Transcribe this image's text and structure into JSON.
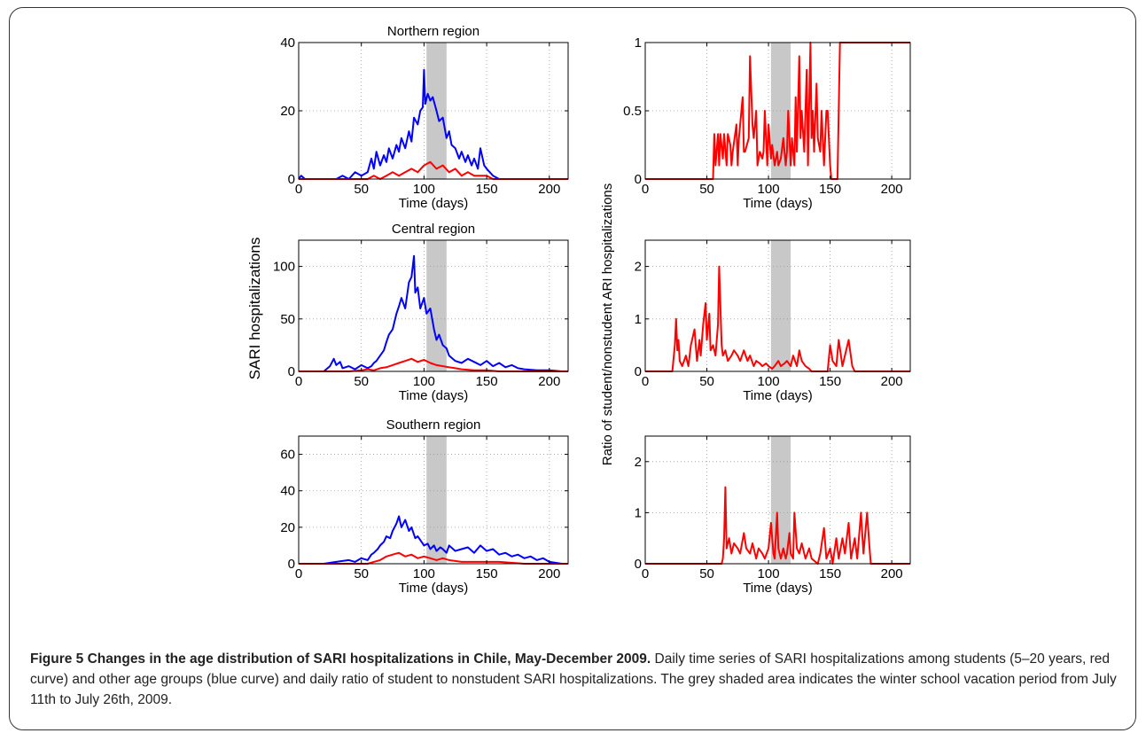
{
  "figure": {
    "caption_title": "Figure 5 Changes in the age distribution of SARI hospitalizations in Chile, May-December 2009.",
    "caption_text": "Daily time series of SARI hospitalizations among students (5–20 years, red curve) and other age groups (blue curve) and daily ratio of student to nonstudent SARI hospitalizations. The grey shaded area indicates the winter school vacation period from July 11th to July 26th, 2009.",
    "left_ylabel": "SARI hospitalizations",
    "right_ylabel": "Ratio of student/nonstudent ARI hospitalizations",
    "colors": {
      "students": "#ff0000",
      "others": "#0000ff",
      "shade": "#c8c8c8"
    }
  },
  "chart_data": [
    {
      "type": "line",
      "title": "Northern region",
      "xlabel": "Time (days)",
      "ylabel": "",
      "xlim": [
        0,
        215
      ],
      "ylim": [
        0,
        40
      ],
      "xticks": [
        0,
        50,
        100,
        150,
        200
      ],
      "yticks": [
        0,
        20,
        40
      ],
      "shaded_x": [
        102,
        118
      ],
      "grid": true,
      "series": [
        {
          "color": "#0000ff",
          "x": [
            0,
            2,
            5,
            10,
            20,
            30,
            35,
            40,
            45,
            50,
            55,
            58,
            60,
            62,
            65,
            68,
            70,
            72,
            75,
            78,
            80,
            82,
            85,
            88,
            90,
            92,
            95,
            97,
            99,
            100,
            101,
            103,
            105,
            107,
            110,
            112,
            115,
            118,
            120,
            122,
            125,
            128,
            130,
            133,
            135,
            138,
            140,
            143,
            145,
            148,
            150,
            155,
            160,
            180,
            200,
            215
          ],
          "y": [
            0,
            1,
            0,
            0,
            0,
            0,
            1,
            0,
            2,
            1,
            2,
            6,
            3,
            8,
            4,
            7,
            5,
            9,
            6,
            10,
            8,
            12,
            9,
            14,
            11,
            18,
            16,
            20,
            21,
            32,
            22,
            25,
            23,
            24,
            20,
            17,
            18,
            12,
            14,
            10,
            9,
            6,
            8,
            5,
            7,
            4,
            6,
            3,
            9,
            4,
            3,
            1,
            0,
            0,
            0,
            0
          ]
        },
        {
          "color": "#ff0000",
          "x": [
            0,
            40,
            50,
            55,
            60,
            65,
            70,
            75,
            80,
            85,
            90,
            95,
            100,
            105,
            110,
            115,
            120,
            125,
            130,
            135,
            140,
            145,
            150,
            155,
            160,
            215
          ],
          "y": [
            0,
            0,
            0,
            0,
            1,
            0,
            1,
            2,
            1,
            2,
            3,
            2,
            4,
            5,
            3,
            4,
            2,
            3,
            1,
            2,
            1,
            1,
            1,
            0,
            0,
            0
          ]
        }
      ]
    },
    {
      "type": "line",
      "title": "",
      "xlabel": "Time (days)",
      "ylabel": "",
      "xlim": [
        0,
        215
      ],
      "ylim": [
        0,
        1
      ],
      "xticks": [
        0,
        50,
        100,
        150,
        200
      ],
      "yticks": [
        0,
        0.5,
        1
      ],
      "shaded_x": [
        102,
        118
      ],
      "grid": true,
      "series": [
        {
          "color": "#ff0000",
          "x": [
            0,
            50,
            55,
            56,
            57,
            59,
            60,
            61,
            63,
            64,
            66,
            67,
            69,
            70,
            71,
            74,
            75,
            76,
            79,
            80,
            81,
            84,
            85,
            87,
            88,
            90,
            91,
            93,
            95,
            96,
            97,
            99,
            100,
            102,
            103,
            105,
            107,
            108,
            110,
            112,
            114,
            115,
            116,
            118,
            119,
            121,
            122,
            123,
            125,
            126,
            127,
            129,
            130,
            131,
            132,
            134,
            135,
            136,
            137,
            139,
            140,
            142,
            143,
            145,
            147,
            148,
            150,
            151,
            155,
            156,
            157,
            158,
            160,
            215
          ],
          "y": [
            0,
            0,
            0,
            0.33,
            0.1,
            0.33,
            0.1,
            0.33,
            0.15,
            0.33,
            0.1,
            0.33,
            0.25,
            0.1,
            0.2,
            0.4,
            0.1,
            0.3,
            0.6,
            0.2,
            0.2,
            0.3,
            0.9,
            0.4,
            0.3,
            0.5,
            0.1,
            0.2,
            0.15,
            0.2,
            0.5,
            0.1,
            0.4,
            0.15,
            0.25,
            0.1,
            0.2,
            0.1,
            0.15,
            0.3,
            0.1,
            0.2,
            0.5,
            0.1,
            0.3,
            0.1,
            0.6,
            0.2,
            0.9,
            0.3,
            0.5,
            0.2,
            0.5,
            0.8,
            0.1,
            1.0,
            0.3,
            0.5,
            0.2,
            0.7,
            0.3,
            0.2,
            0.5,
            0.1,
            0.5,
            0.5,
            0.1,
            0,
            0,
            0,
            0.5,
            1.0,
            1.0,
            1.0
          ]
        }
      ]
    },
    {
      "type": "line",
      "title": "Central region",
      "xlabel": "Time (days)",
      "ylabel": "",
      "xlim": [
        0,
        215
      ],
      "ylim": [
        0,
        125
      ],
      "xticks": [
        0,
        50,
        100,
        150,
        200
      ],
      "yticks": [
        0,
        50,
        100
      ],
      "shaded_x": [
        102,
        118
      ],
      "grid": true,
      "series": [
        {
          "color": "#0000ff",
          "x": [
            0,
            20,
            25,
            28,
            30,
            33,
            35,
            40,
            45,
            50,
            55,
            58,
            60,
            62,
            65,
            68,
            70,
            72,
            75,
            78,
            80,
            82,
            85,
            88,
            90,
            92,
            93,
            95,
            97,
            100,
            102,
            105,
            108,
            110,
            112,
            115,
            118,
            120,
            125,
            130,
            135,
            140,
            145,
            150,
            155,
            160,
            165,
            170,
            175,
            180,
            190,
            200,
            210,
            215
          ],
          "y": [
            0,
            0,
            5,
            12,
            6,
            9,
            3,
            5,
            2,
            6,
            3,
            5,
            8,
            10,
            15,
            20,
            28,
            35,
            40,
            55,
            62,
            70,
            60,
            85,
            90,
            110,
            75,
            80,
            60,
            70,
            55,
            60,
            40,
            30,
            35,
            25,
            22,
            15,
            10,
            8,
            12,
            9,
            6,
            10,
            5,
            8,
            4,
            6,
            3,
            2,
            1,
            1,
            0,
            0
          ]
        },
        {
          "color": "#ff0000",
          "x": [
            0,
            40,
            50,
            55,
            60,
            65,
            70,
            75,
            80,
            85,
            90,
            95,
            100,
            105,
            110,
            115,
            120,
            125,
            130,
            140,
            150,
            160,
            215
          ],
          "y": [
            0,
            0,
            1,
            2,
            1,
            3,
            4,
            6,
            8,
            10,
            12,
            9,
            11,
            8,
            6,
            5,
            4,
            3,
            2,
            1,
            1,
            0,
            0
          ]
        }
      ]
    },
    {
      "type": "line",
      "title": "",
      "xlabel": "Time (days)",
      "ylabel": "",
      "xlim": [
        0,
        215
      ],
      "ylim": [
        0,
        2.5
      ],
      "xticks": [
        0,
        50,
        100,
        150,
        200
      ],
      "yticks": [
        0,
        1,
        2
      ],
      "shaded_x": [
        102,
        118
      ],
      "grid": true,
      "series": [
        {
          "color": "#ff0000",
          "x": [
            0,
            22,
            24,
            25,
            26,
            27,
            28,
            30,
            33,
            35,
            37,
            40,
            42,
            44,
            45,
            47,
            49,
            50,
            52,
            53,
            55,
            57,
            59,
            60,
            62,
            63,
            65,
            67,
            70,
            72,
            75,
            77,
            80,
            83,
            85,
            88,
            90,
            93,
            95,
            98,
            100,
            103,
            105,
            108,
            110,
            113,
            115,
            118,
            120,
            123,
            125,
            127,
            130,
            133,
            135,
            140,
            145,
            148,
            150,
            152,
            155,
            157,
            160,
            162,
            165,
            168,
            170,
            215
          ],
          "y": [
            0,
            0,
            0.5,
            1.0,
            0.4,
            0.6,
            0.2,
            0.1,
            0.3,
            0.1,
            0.5,
            0.8,
            0.2,
            0.6,
            0.3,
            0.9,
            1.3,
            0.6,
            1.1,
            0.4,
            0.5,
            0.3,
            0.9,
            2.0,
            0.5,
            0.3,
            0.4,
            0.2,
            0.3,
            0.4,
            0.3,
            0.2,
            0.4,
            0.2,
            0.3,
            0.1,
            0.2,
            0.15,
            0.1,
            0.15,
            0.1,
            0.05,
            0.1,
            0.2,
            0.1,
            0.15,
            0.2,
            0.1,
            0.3,
            0.1,
            0.4,
            0.2,
            0.1,
            0.05,
            0,
            0,
            0,
            0,
            0.5,
            0.2,
            0.1,
            0.6,
            0.1,
            0.3,
            0.6,
            0.1,
            0,
            0
          ]
        }
      ]
    },
    {
      "type": "line",
      "title": "Southern region",
      "xlabel": "Time (days)",
      "ylabel": "",
      "xlim": [
        0,
        215
      ],
      "ylim": [
        0,
        70
      ],
      "xticks": [
        0,
        50,
        100,
        150,
        200
      ],
      "yticks": [
        0,
        20,
        40,
        60
      ],
      "shaded_x": [
        102,
        118
      ],
      "grid": true,
      "series": [
        {
          "color": "#0000ff",
          "x": [
            0,
            20,
            30,
            40,
            45,
            50,
            55,
            58,
            60,
            63,
            65,
            68,
            70,
            73,
            75,
            78,
            80,
            82,
            85,
            88,
            90,
            93,
            95,
            98,
            100,
            103,
            105,
            108,
            110,
            113,
            115,
            118,
            120,
            125,
            130,
            135,
            140,
            145,
            150,
            155,
            160,
            165,
            170,
            175,
            180,
            185,
            190,
            195,
            200,
            210,
            215
          ],
          "y": [
            0,
            0,
            1,
            2,
            1,
            3,
            2,
            5,
            6,
            8,
            10,
            12,
            15,
            14,
            18,
            22,
            26,
            20,
            24,
            18,
            20,
            14,
            15,
            12,
            10,
            11,
            8,
            10,
            7,
            9,
            8,
            6,
            10,
            7,
            8,
            9,
            6,
            10,
            7,
            8,
            5,
            6,
            4,
            5,
            3,
            4,
            2,
            3,
            1,
            0,
            0
          ]
        },
        {
          "color": "#ff0000",
          "x": [
            0,
            55,
            60,
            65,
            70,
            75,
            80,
            85,
            90,
            95,
            100,
            105,
            110,
            115,
            120,
            130,
            140,
            160,
            180,
            200,
            215
          ],
          "y": [
            0,
            0,
            1,
            2,
            4,
            5,
            6,
            4,
            5,
            3,
            4,
            3,
            2,
            3,
            2,
            1,
            1,
            1,
            0,
            0,
            0
          ]
        }
      ]
    },
    {
      "type": "line",
      "title": "",
      "xlabel": "Time (days)",
      "ylabel": "",
      "xlim": [
        0,
        215
      ],
      "ylim": [
        0,
        2.5
      ],
      "xticks": [
        0,
        50,
        100,
        150,
        200
      ],
      "yticks": [
        0,
        1,
        2
      ],
      "shaded_x": [
        102,
        118
      ],
      "grid": true,
      "series": [
        {
          "color": "#ff0000",
          "x": [
            0,
            62,
            63,
            64,
            65,
            66,
            68,
            70,
            72,
            75,
            77,
            80,
            82,
            85,
            87,
            90,
            92,
            95,
            97,
            100,
            102,
            104,
            105,
            107,
            108,
            110,
            112,
            114,
            115,
            117,
            118,
            120,
            121,
            123,
            125,
            127,
            130,
            133,
            135,
            140,
            142,
            145,
            147,
            150,
            152,
            155,
            157,
            160,
            162,
            165,
            167,
            170,
            172,
            175,
            177,
            180,
            182,
            183,
            184,
            215
          ],
          "y": [
            0,
            0,
            0.1,
            0.5,
            1.5,
            0.3,
            0.5,
            0.2,
            0.4,
            0.3,
            0.2,
            0.6,
            0.3,
            0.2,
            0.4,
            0.1,
            0.3,
            0.2,
            0.1,
            0.3,
            0.8,
            0.2,
            0.1,
            1.0,
            0.3,
            0.1,
            0.3,
            0.1,
            0.2,
            0.6,
            0.2,
            0.1,
            1.0,
            0.3,
            0.2,
            0.4,
            0.1,
            0.3,
            0.1,
            0,
            0.2,
            0.7,
            0.1,
            0.3,
            0,
            0.5,
            0.1,
            0.5,
            0.2,
            0.8,
            0.1,
            0.5,
            0.1,
            1.0,
            0.2,
            1.0,
            0.3,
            0,
            0,
            0
          ]
        }
      ]
    }
  ]
}
